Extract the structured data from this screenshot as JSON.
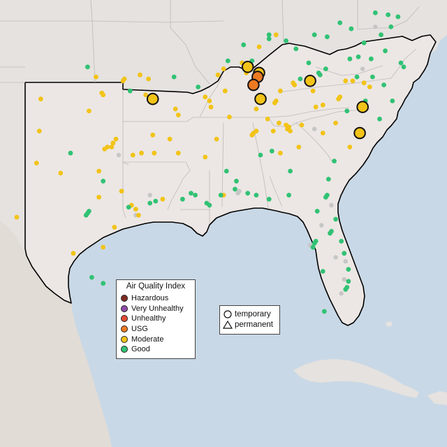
{
  "legend": {
    "title": "Air Quality Index",
    "categories": [
      {
        "label": "Hazardous",
        "color": "#7e2a22"
      },
      {
        "label": "Very Unhealthy",
        "color": "#8d4ca8"
      },
      {
        "label": "Unhealthy",
        "color": "#e34b33"
      },
      {
        "label": "USG",
        "color": "#ec7a22"
      },
      {
        "label": "Moderate",
        "color": "#f2c318"
      },
      {
        "label": "Good",
        "color": "#31c274"
      }
    ]
  },
  "monitor_legend": {
    "temporary": "temporary",
    "permanent": "permanent"
  },
  "colors": {
    "water": "#c9d8e6",
    "land": "#e5e2df",
    "highlight_land": "#ece7e4",
    "state_border": "#bdbab7",
    "region_border": "#000000",
    "no_data": "#c6c6c6"
  },
  "large_monitors": [
    {
      "category": "Moderate",
      "type": "temporary",
      "lon": -93.9,
      "lat": 35.2
    },
    {
      "category": "Moderate",
      "type": "temporary",
      "lon": -87.2,
      "lat": 36.8
    },
    {
      "category": "Moderate",
      "type": "temporary",
      "lon": -86.4,
      "lat": 36.5
    },
    {
      "category": "USG",
      "type": "temporary",
      "lon": -86.5,
      "lat": 36.3
    },
    {
      "category": "USG",
      "type": "temporary",
      "lon": -86.8,
      "lat": 35.9
    },
    {
      "category": "Moderate",
      "type": "temporary",
      "lon": -86.3,
      "lat": 35.2
    },
    {
      "category": "Moderate",
      "type": "temporary",
      "lon": -82.8,
      "lat": 36.1
    },
    {
      "category": "Moderate",
      "type": "temporary",
      "lon": -79.1,
      "lat": 34.8
    },
    {
      "category": "Moderate",
      "type": "temporary",
      "lon": -79.3,
      "lat": 33.5
    }
  ],
  "small_monitors": [
    {
      "c": "Good",
      "lon": -78.2,
      "lat": 39.5
    },
    {
      "c": "Good",
      "lon": -77.3,
      "lat": 39.4
    },
    {
      "c": "Good",
      "lon": -76.6,
      "lat": 39.3
    },
    {
      "c": "Good",
      "lon": -77.1,
      "lat": 38.8
    },
    {
      "c": "Good",
      "lon": -77.8,
      "lat": 38.4
    },
    {
      "c": "Good",
      "lon": -77.5,
      "lat": 37.6
    },
    {
      "c": "Good",
      "lon": -76.4,
      "lat": 37.0
    },
    {
      "c": "Good",
      "lon": -76.2,
      "lat": 36.8
    },
    {
      "c": "Good",
      "lon": -79.4,
      "lat": 37.3
    },
    {
      "c": "Good",
      "lon": -80.0,
      "lat": 37.2
    },
    {
      "c": "Good",
      "lon": -81.7,
      "lat": 36.7
    },
    {
      "c": "Good",
      "lon": -83.8,
      "lat": 37.7
    },
    {
      "c": "Good",
      "lon": -84.5,
      "lat": 38.1
    },
    {
      "c": "Good",
      "lon": -85.7,
      "lat": 38.2
    },
    {
      "c": "Good",
      "lon": -82.5,
      "lat": 38.4
    },
    {
      "c": "Moderate",
      "lon": -85.2,
      "lat": 38.4
    },
    {
      "c": "Moderate",
      "lon": -86.4,
      "lat": 37.8
    },
    {
      "c": "Good",
      "lon": -87.5,
      "lat": 37.9
    },
    {
      "c": "Good",
      "lon": -88.6,
      "lat": 37.1
    },
    {
      "c": "Moderate",
      "lon": -87.6,
      "lat": 37.0
    },
    {
      "c": "Moderate",
      "lon": -88.9,
      "lat": 36.7
    },
    {
      "c": "Moderate",
      "lon": -89.3,
      "lat": 36.4
    },
    {
      "c": "Moderate",
      "lon": -89.9,
      "lat": 35.1
    },
    {
      "c": "Moderate",
      "lon": -89.8,
      "lat": 34.8
    },
    {
      "c": "Moderate",
      "lon": -90.2,
      "lat": 35.3
    },
    {
      "c": "Good",
      "lon": -90.7,
      "lat": 35.8
    },
    {
      "c": "Moderate",
      "lon": -92.3,
      "lat": 34.7
    },
    {
      "c": "Moderate",
      "lon": -92.1,
      "lat": 34.4
    },
    {
      "c": "Good",
      "lon": -92.4,
      "lat": 36.3
    },
    {
      "c": "Moderate",
      "lon": -94.2,
      "lat": 36.2
    },
    {
      "c": "Moderate",
      "lon": -94.4,
      "lat": 35.4
    },
    {
      "c": "Moderate",
      "lon": -92.7,
      "lat": 33.2
    },
    {
      "c": "Moderate",
      "lon": -93.9,
      "lat": 33.4
    },
    {
      "c": "Moderate",
      "lon": -93.8,
      "lat": 32.5
    },
    {
      "c": "Moderate",
      "lon": -92.1,
      "lat": 32.5
    },
    {
      "c": "Good",
      "lon": -91.2,
      "lat": 30.5
    },
    {
      "c": "Good",
      "lon": -90.9,
      "lat": 30.4
    },
    {
      "c": "Good",
      "lon": -90.1,
      "lat": 30.0
    },
    {
      "c": "Good",
      "lon": -89.9,
      "lat": 29.9
    },
    {
      "c": "Good",
      "lon": -91.8,
      "lat": 30.2
    },
    {
      "c": "Moderate",
      "lon": -93.2,
      "lat": 30.2
    },
    {
      "c": "Good",
      "lon": -93.7,
      "lat": 30.1
    },
    {
      "c": "Good",
      "lon": -94.1,
      "lat": 30.0
    },
    {
      "c": "Moderate",
      "lon": -95.4,
      "lat": 29.9
    },
    {
      "c": "Moderate",
      "lon": -95.1,
      "lat": 29.7
    },
    {
      "c": "Moderate",
      "lon": -94.9,
      "lat": 29.4
    },
    {
      "c": "Good",
      "lon": -95.6,
      "lat": 29.8
    },
    {
      "c": "Moderate",
      "lon": -96.6,
      "lat": 28.8
    },
    {
      "c": "Moderate",
      "lon": -97.4,
      "lat": 27.8
    },
    {
      "c": "Good",
      "lon": -97.4,
      "lat": 26.0
    },
    {
      "c": "Good",
      "lon": -98.2,
      "lat": 26.3
    },
    {
      "c": "Good",
      "lon": -98.5,
      "lat": 29.5
    },
    {
      "c": "Good",
      "lon": -98.6,
      "lat": 29.4
    },
    {
      "c": "Good",
      "lon": -98.4,
      "lat": 29.6
    },
    {
      "c": "Moderate",
      "lon": -97.7,
      "lat": 30.3
    },
    {
      "c": "Moderate",
      "lon": -96.1,
      "lat": 30.6
    },
    {
      "c": "Good",
      "lon": -97.4,
      "lat": 31.1
    },
    {
      "c": "Moderate",
      "lon": -97.1,
      "lat": 32.8
    },
    {
      "c": "Moderate",
      "lon": -96.8,
      "lat": 32.8
    },
    {
      "c": "Moderate",
      "lon": -97.3,
      "lat": 32.7
    },
    {
      "c": "Moderate",
      "lon": -96.7,
      "lat": 33.0
    },
    {
      "c": "Moderate",
      "lon": -96.5,
      "lat": 33.2
    },
    {
      "c": "Moderate",
      "lon": -94.7,
      "lat": 32.5
    },
    {
      "c": "Moderate",
      "lon": -95.3,
      "lat": 32.4
    },
    {
      "c": "Moderate",
      "lon": -97.7,
      "lat": 31.6
    },
    {
      "c": "Good",
      "lon": -99.7,
      "lat": 32.5
    },
    {
      "c": "Moderate",
      "lon": -101.9,
      "lat": 33.6
    },
    {
      "c": "Moderate",
      "lon": -101.8,
      "lat": 35.2
    },
    {
      "c": "Moderate",
      "lon": -100.4,
      "lat": 31.5
    },
    {
      "c": "Moderate",
      "lon": -102.1,
      "lat": 32.0
    },
    {
      "c": "Good",
      "lon": -106.4,
      "lat": 31.8
    },
    {
      "c": "Good",
      "lon": -106.3,
      "lat": 31.8
    },
    {
      "c": "Good",
      "lon": -106.5,
      "lat": 31.9
    },
    {
      "c": "Moderate",
      "lon": -106.6,
      "lat": 31.7
    },
    {
      "c": "Moderate",
      "lon": -99.5,
      "lat": 27.5
    },
    {
      "c": "Moderate",
      "lon": -103.5,
      "lat": 29.3
    },
    {
      "c": "Moderate",
      "lon": -97.5,
      "lat": 35.5
    },
    {
      "c": "Moderate",
      "lon": -97.4,
      "lat": 35.4
    },
    {
      "c": "Moderate",
      "lon": -95.9,
      "lat": 36.2
    },
    {
      "c": "Moderate",
      "lon": -96.0,
      "lat": 36.1
    },
    {
      "c": "Good",
      "lon": -98.5,
      "lat": 36.8
    },
    {
      "c": "Moderate",
      "lon": -98.4,
      "lat": 34.6
    },
    {
      "c": "Moderate",
      "lon": -97.9,
      "lat": 36.3
    },
    {
      "c": "Moderate",
      "lon": -94.8,
      "lat": 36.4
    },
    {
      "c": "Good",
      "lon": -95.5,
      "lat": 35.6
    },
    {
      "c": "Good",
      "lon": -88.1,
      "lat": 30.7
    },
    {
      "c": "Good",
      "lon": -87.2,
      "lat": 30.5
    },
    {
      "c": "Good",
      "lon": -86.6,
      "lat": 30.4
    },
    {
      "c": "Good",
      "lon": -88.0,
      "lat": 31.1
    },
    {
      "c": "Good",
      "lon": -86.3,
      "lat": 32.4
    },
    {
      "c": "Good",
      "lon": -85.5,
      "lat": 32.6
    },
    {
      "c": "Moderate",
      "lon": -86.8,
      "lat": 33.5
    },
    {
      "c": "Moderate",
      "lon": -86.6,
      "lat": 33.6
    },
    {
      "c": "Moderate",
      "lon": -86.9,
      "lat": 33.4
    },
    {
      "c": "Moderate",
      "lon": -86.6,
      "lat": 34.7
    },
    {
      "c": "Moderate",
      "lon": -85.8,
      "lat": 34.2
    },
    {
      "c": "Moderate",
      "lon": -85.4,
      "lat": 33.6
    },
    {
      "c": "Moderate",
      "lon": -85.0,
      "lat": 34.0
    },
    {
      "c": "Moderate",
      "lon": -84.4,
      "lat": 33.7
    },
    {
      "c": "Moderate",
      "lon": -84.3,
      "lat": 33.8
    },
    {
      "c": "Moderate",
      "lon": -84.2,
      "lat": 33.6
    },
    {
      "c": "Moderate",
      "lon": -84.5,
      "lat": 33.9
    },
    {
      "c": "Moderate",
      "lon": -83.4,
      "lat": 33.9
    },
    {
      "c": "Moderate",
      "lon": -81.9,
      "lat": 33.5
    },
    {
      "c": "Moderate",
      "lon": -83.6,
      "lat": 32.8
    },
    {
      "c": "Moderate",
      "lon": -84.9,
      "lat": 32.5
    },
    {
      "c": "Good",
      "lon": -84.2,
      "lat": 31.6
    },
    {
      "c": "Good",
      "lon": -81.1,
      "lat": 32.1
    },
    {
      "c": "Good",
      "lon": -81.5,
      "lat": 31.2
    },
    {
      "c": "Good",
      "lon": -81.6,
      "lat": 30.4
    },
    {
      "c": "Good",
      "lon": -81.7,
      "lat": 30.3
    },
    {
      "c": "Good",
      "lon": -82.3,
      "lat": 29.6
    },
    {
      "c": "Good",
      "lon": -84.3,
      "lat": 30.4
    },
    {
      "c": "Good",
      "lon": -85.7,
      "lat": 30.2
    },
    {
      "c": "Good",
      "lon": -82.5,
      "lat": 28.0
    },
    {
      "c": "Good",
      "lon": -82.6,
      "lat": 27.8
    },
    {
      "c": "Good",
      "lon": -82.4,
      "lat": 28.1
    },
    {
      "c": "Good",
      "lon": -81.4,
      "lat": 28.5
    },
    {
      "c": "Good",
      "lon": -81.3,
      "lat": 28.6
    },
    {
      "c": "Good",
      "lon": -81.9,
      "lat": 26.6
    },
    {
      "c": "Good",
      "lon": -80.1,
      "lat": 26.1
    },
    {
      "c": "Good",
      "lon": -80.2,
      "lat": 25.8
    },
    {
      "c": "Good",
      "lon": -80.3,
      "lat": 25.7
    },
    {
      "c": "Good",
      "lon": -80.1,
      "lat": 26.7
    },
    {
      "c": "Good",
      "lon": -80.6,
      "lat": 28.1
    },
    {
      "c": "Good",
      "lon": -81.0,
      "lat": 29.2
    },
    {
      "c": "Good",
      "lon": -81.8,
      "lat": 24.6
    },
    {
      "c": "Good",
      "lon": -80.4,
      "lat": 27.5
    },
    {
      "c": "Moderate",
      "lon": -80.8,
      "lat": 35.2
    },
    {
      "c": "Moderate",
      "lon": -80.7,
      "lat": 35.3
    },
    {
      "c": "Moderate",
      "lon": -80.3,
      "lat": 36.1
    },
    {
      "c": "Moderate",
      "lon": -79.8,
      "lat": 36.1
    },
    {
      "c": "Moderate",
      "lon": -78.6,
      "lat": 35.8
    },
    {
      "c": "Moderate",
      "lon": -79.0,
      "lat": 36.0
    },
    {
      "c": "Moderate",
      "lon": -82.6,
      "lat": 35.6
    },
    {
      "c": "Moderate",
      "lon": -82.4,
      "lat": 34.8
    },
    {
      "c": "Moderate",
      "lon": -81.0,
      "lat": 34.0
    },
    {
      "c": "Moderate",
      "lon": -81.9,
      "lat": 34.9
    },
    {
      "c": "Moderate",
      "lon": -80.0,
      "lat": 32.8
    },
    {
      "c": "Good",
      "lon": -77.9,
      "lat": 34.2
    },
    {
      "c": "Good",
      "lon": -77.0,
      "lat": 35.1
    },
    {
      "c": "Good",
      "lon": -78.9,
      "lat": 35.1
    },
    {
      "c": "Good",
      "lon": -77.6,
      "lat": 35.9
    },
    {
      "c": "Good",
      "lon": -78.4,
      "lat": 36.3
    },
    {
      "c": "Good",
      "lon": -80.2,
      "lat": 34.6
    },
    {
      "c": "Good",
      "lon": -79.5,
      "lat": 36.3
    },
    {
      "c": "Good",
      "lon": -82.2,
      "lat": 36.5
    },
    {
      "c": "Moderate",
      "lon": -83.9,
      "lat": 35.9
    },
    {
      "c": "Moderate",
      "lon": -84.0,
      "lat": 36.0
    },
    {
      "c": "Moderate",
      "lon": -85.3,
      "lat": 35.0
    },
    {
      "c": "Moderate",
      "lon": -85.2,
      "lat": 35.1
    },
    {
      "c": "Moderate",
      "lon": -84.9,
      "lat": 35.6
    },
    {
      "c": "Moderate",
      "lon": -87.3,
      "lat": 36.5
    },
    {
      "c": "Moderate",
      "lon": -88.8,
      "lat": 35.6
    },
    {
      "c": "Good",
      "lon": -86.1,
      "lat": 35.2
    },
    {
      "c": "Good",
      "lon": -83.5,
      "lat": 36.2
    },
    {
      "c": "Good",
      "lon": -82.1,
      "lat": 36.4
    },
    {
      "c": "Moderate",
      "lon": -88.5,
      "lat": 34.3
    },
    {
      "c": "Moderate",
      "lon": -89.4,
      "lat": 33.2
    },
    {
      "c": "Moderate",
      "lon": -90.2,
      "lat": 32.3
    },
    {
      "c": "Good",
      "lon": -88.7,
      "lat": 31.6
    },
    {
      "c": "Moderate",
      "lon": -88.9,
      "lat": 30.4
    },
    {
      "c": "Good",
      "lon": -89.1,
      "lat": 30.4
    },
    {
      "c": "Good",
      "lon": -81.6,
      "lat": 38.3
    },
    {
      "c": "Good",
      "lon": -80.7,
      "lat": 39.0
    },
    {
      "c": "Good",
      "lon": -79.9,
      "lat": 38.7
    },
    {
      "c": "Good",
      "lon": -79.0,
      "lat": 38.0
    },
    {
      "c": "Good",
      "lon": -78.5,
      "lat": 37.2
    },
    {
      "c": "Good",
      "lon": -85.7,
      "lat": 38.4
    },
    {
      "c": "Good",
      "lon": -86.9,
      "lat": 37.1
    },
    {
      "c": "Good",
      "lon": -82.9,
      "lat": 37.0
    }
  ],
  "no_data_monitors": [
    {
      "lon": -96.3,
      "lat": 32.4
    },
    {
      "lon": -94.1,
      "lat": 30.4
    },
    {
      "lon": -95.1,
      "lat": 29.4
    },
    {
      "lon": -87.8,
      "lat": 30.6
    },
    {
      "lon": -87.9,
      "lat": 30.5
    },
    {
      "lon": -82.8,
      "lat": 27.9
    },
    {
      "lon": -81.0,
      "lat": 27.3
    },
    {
      "lon": -80.4,
      "lat": 26.2
    },
    {
      "lon": -82.0,
      "lat": 28.9
    },
    {
      "lon": -82.5,
      "lat": 33.7
    },
    {
      "lon": -80.3,
      "lat": 27.1
    },
    {
      "lon": -80.6,
      "lat": 25.5
    },
    {
      "lon": -81.3,
      "lat": 29.9
    },
    {
      "lon": -78.2,
      "lat": 38.8
    },
    {
      "lon": -79.1,
      "lat": 36.7
    }
  ]
}
